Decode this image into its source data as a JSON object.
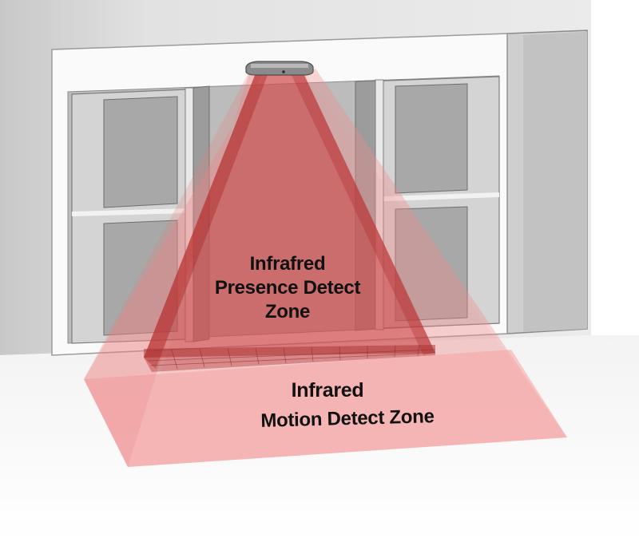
{
  "zones": {
    "presence": {
      "label_line1": "Infrafred",
      "label_line2": "Presence Detect",
      "label_line3": "Zone",
      "color": "#c83c3c"
    },
    "motion": {
      "label_line1": "Infrared",
      "label_line2": "Motion Detect Zone",
      "color": "#f08a8a"
    }
  },
  "colors": {
    "wall": "#e6e6e6",
    "frame": "#f8f8f8",
    "glass": "#bdbdbd",
    "column": "#c9c9c9"
  }
}
